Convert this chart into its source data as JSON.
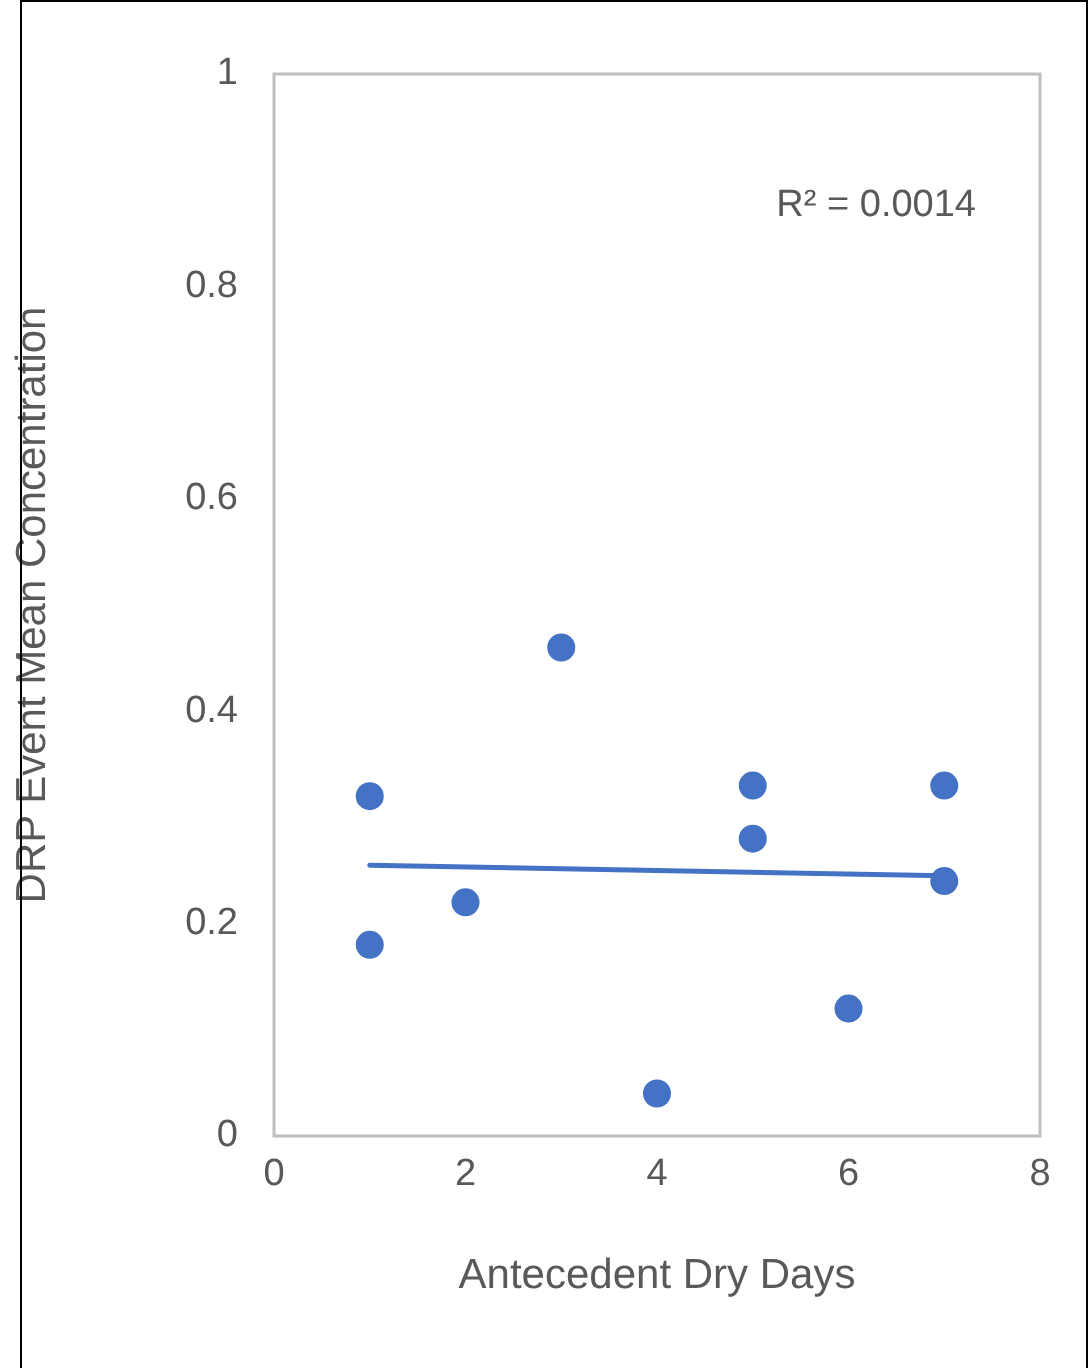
{
  "chart_data": {
    "type": "scatter",
    "xlabel": "Antecedent Dry Days",
    "ylabel": "DRP Event Mean Concentration",
    "annotations": [
      "R² = 0.0014"
    ],
    "xlim": [
      0,
      8
    ],
    "xticks": [
      0,
      2,
      4,
      6,
      8
    ],
    "ylim": [
      0,
      1
    ],
    "yticks": [
      0,
      0.2,
      0.4,
      0.6,
      0.8,
      1
    ],
    "grid": false,
    "legend": false,
    "series": [
      {
        "type": "scatter",
        "color": "#4472c4",
        "marker": "circle",
        "x": [
          1,
          1,
          2,
          3,
          4,
          5,
          5,
          6,
          7,
          7
        ],
        "values": [
          0.32,
          0.18,
          0.22,
          0.46,
          0.04,
          0.33,
          0.28,
          0.12,
          0.33,
          0.24
        ]
      },
      {
        "type": "line",
        "color": "#4472c4",
        "marker": "none",
        "line_style": "solid",
        "x": [
          1,
          7
        ],
        "values": [
          0.255,
          0.245
        ]
      }
    ]
  }
}
